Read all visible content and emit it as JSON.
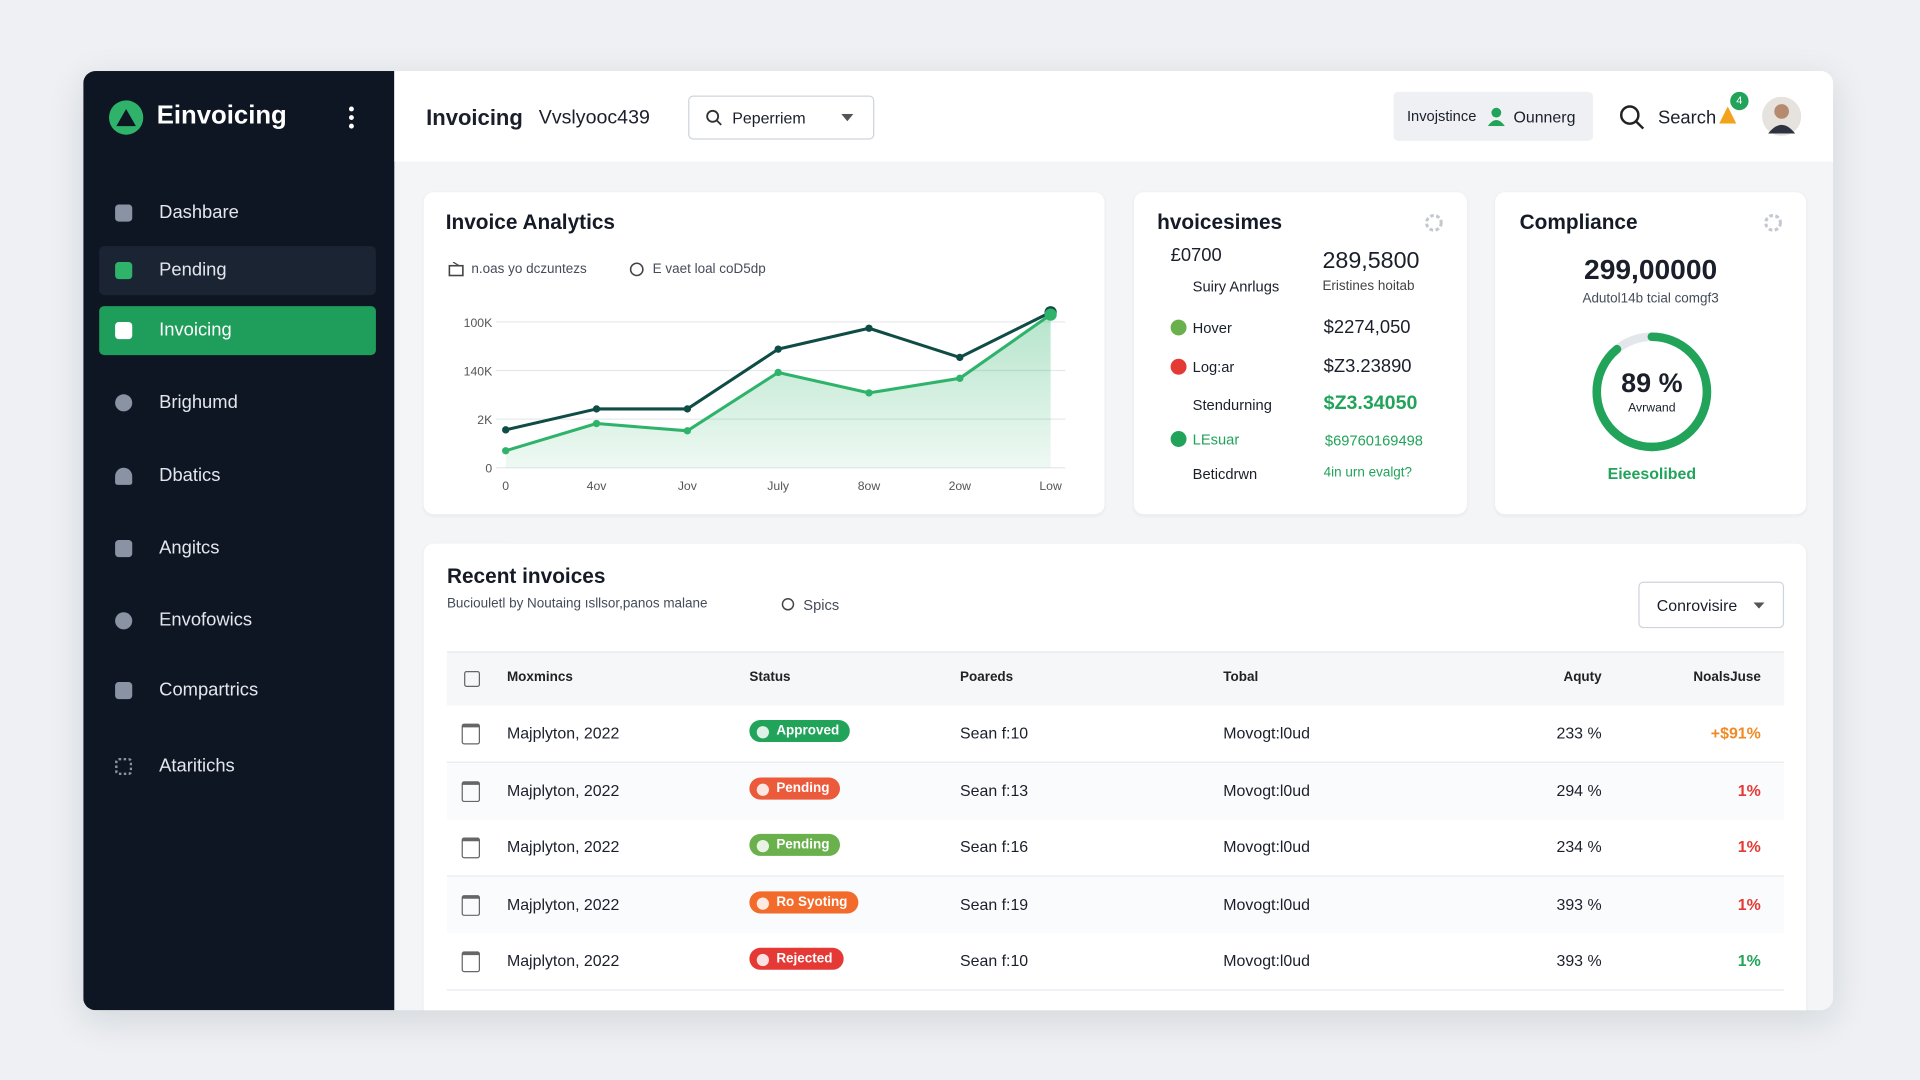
{
  "sidebar": {
    "brand": "Einvoicing",
    "nav": [
      "Dashbare",
      "Pending",
      "Invoicing",
      "Brighumd",
      "Dbatics",
      "Angitcs",
      "Envofowics",
      "Compartrics",
      "Ataritichs"
    ]
  },
  "topbar": {
    "title": "Invoicing",
    "workspace": "Vvslyooc439",
    "dropdown": "Peperriem",
    "pill": [
      "Invojstince",
      "Ounnerg"
    ],
    "search": "Search",
    "badge": "4"
  },
  "chart_data": {
    "type": "line",
    "title": "Invoice Analytics",
    "categories": [
      "0",
      "4ov",
      "Jov",
      "July",
      "8ow",
      "2ow",
      "Low"
    ],
    "series": [
      {
        "name": "n.oas yo dczuntezs",
        "color": "#0f4c45",
        "values": [
          0.78,
          1.21,
          1.21,
          2.44,
          2.87,
          2.27,
          3.2
        ]
      },
      {
        "name": "E vaet loal coD5dp",
        "color": "#2fb36b",
        "values": [
          0.35,
          0.91,
          0.76,
          1.96,
          1.54,
          1.84,
          3.15
        ],
        "area": true
      }
    ],
    "ylim": [
      0,
      3.3
    ],
    "yticks": [
      {
        "value": 0,
        "label": "0"
      },
      {
        "value": 1,
        "label": "2K"
      },
      {
        "value": 2,
        "label": "140K"
      },
      {
        "value": 3,
        "label": "100K"
      }
    ],
    "grid": true
  },
  "invoices_card": {
    "title": "hvoicesimes",
    "rows": [
      {
        "label": "£0700",
        "value": "289,5800"
      },
      {
        "label": "Suiry Anrlugs",
        "value": "Eristines hoitab"
      },
      {
        "label": "Hover",
        "value": "$2274,050"
      },
      {
        "label": "Log:ar",
        "value": "$Z3.23890"
      },
      {
        "label": "Stendurning",
        "value": "$Z3.34050"
      },
      {
        "label": "LEsuar",
        "value": "$69760169498"
      },
      {
        "label": "Beticdrwn",
        "value": "4in urn evalgt?"
      }
    ]
  },
  "compliance": {
    "title": "Compliance",
    "total": "299,00000",
    "caption": "Adutol14b tcial comgf3",
    "percent": 89,
    "percent_label": "89 %",
    "ring_label": "Avrwand",
    "status": "Eieesolibed"
  },
  "recent": {
    "title": "Recent invoices",
    "subtitle": "Buciouletl by Noutaing ısllsor,panos malane",
    "filter": "Spics",
    "button": "Conrovisire",
    "columns": [
      "Moxmincs",
      "Status",
      "Poareds",
      "Tobal",
      "Aquty",
      "NoalsJuse"
    ],
    "rows": [
      {
        "date": "Majplyton, 2022",
        "status": "Approved",
        "status_color": "#22a35a",
        "poareds": "Sean f:10",
        "total": "Movogt:l0ud",
        "aquty": "233 %",
        "change": "+$91%",
        "change_color": "#f08a24"
      },
      {
        "date": "Majplyton, 2022",
        "status": "Pending",
        "status_color": "#ec5a3c",
        "poareds": "Sean f:13",
        "total": "Movogt:l0ud",
        "aquty": "294 %",
        "change": "1%",
        "change_color": "#e53935"
      },
      {
        "date": "Majplyton, 2022",
        "status": "Pending",
        "status_color": "#6ab04c",
        "poareds": "Sean f:16",
        "total": "Movogt:l0ud",
        "aquty": "234 %",
        "change": "1%",
        "change_color": "#e53935"
      },
      {
        "date": "Majplyton, 2022",
        "status": "Ro Syoting",
        "status_color": "#f26b2a",
        "poareds": "Sean f:19",
        "total": "Movogt:l0ud",
        "aquty": "393 %",
        "change": "1%",
        "change_color": "#e53935"
      },
      {
        "date": "Majplyton, 2022",
        "status": "Rejected",
        "status_color": "#e53935",
        "poareds": "Sean f:10",
        "total": "Movogt:l0ud",
        "aquty": "393 %",
        "change": "1%",
        "change_color": "#22a35a"
      }
    ]
  }
}
